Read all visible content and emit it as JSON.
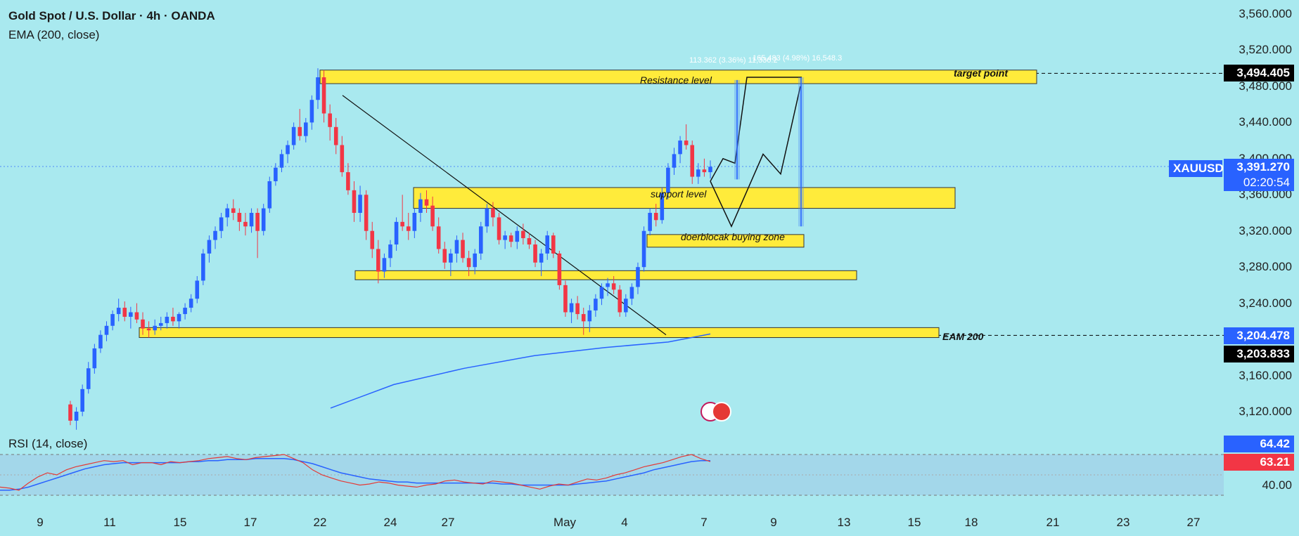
{
  "header": {
    "symbol_title": "Gold Spot / U.S. Dollar · 4h · OANDA",
    "indicator": "EMA (200, close)",
    "rsi_title": "RSI (14, close)"
  },
  "price_axis": [
    "3,560.000",
    "3,520.000",
    "3,480.000",
    "3,440.000",
    "3,400.000",
    "3,360.000",
    "3,320.000",
    "3,280.000",
    "3,240.000",
    "3,200.000",
    "3,160.000",
    "3,120.000"
  ],
  "rsi_axis": [
    "40.00"
  ],
  "tags": {
    "target": "3,494.405",
    "symbol": "XAUUSD",
    "current": "3,391.270",
    "countdown": "02:20:54",
    "ema_line": "3,204.478",
    "ema_value": "3,203.833",
    "rsi_ma": "64.42",
    "rsi": "63.21"
  },
  "annotations": {
    "resistance": "Resistance level",
    "support": "support level",
    "buying_zone": "doerblocak buying zone",
    "target_point": "target point",
    "eam": "EAM 200",
    "measure1": "113.362 (3.36%) 11,336.2",
    "measure2": "165.483 (4.98%) 16,548.3"
  },
  "time_axis": [
    "9",
    "11",
    "15",
    "17",
    "22",
    "24",
    "27",
    "May",
    "4",
    "7",
    "9",
    "13",
    "15",
    "18",
    "21",
    "23",
    "27"
  ],
  "colors": {
    "bg": "#a9e9ef",
    "up": "#2962ff",
    "down": "#f23645",
    "zone": "#ffeb3b",
    "ema": "#2962ff",
    "rsi": "#e53935"
  },
  "chart_data": {
    "type": "candlestick",
    "title": "Gold Spot / U.S. Dollar · 4h · OANDA",
    "y_range": [
      3100,
      3575
    ],
    "candles": [
      [
        3128,
        3132,
        3105,
        3110
      ],
      [
        3110,
        3125,
        3100,
        3120
      ],
      [
        3120,
        3150,
        3115,
        3145
      ],
      [
        3145,
        3175,
        3140,
        3168
      ],
      [
        3168,
        3195,
        3162,
        3190
      ],
      [
        3190,
        3210,
        3185,
        3205
      ],
      [
        3205,
        3220,
        3198,
        3215
      ],
      [
        3215,
        3232,
        3210,
        3228
      ],
      [
        3228,
        3245,
        3220,
        3235
      ],
      [
        3235,
        3242,
        3220,
        3225
      ],
      [
        3225,
        3236,
        3212,
        3230
      ],
      [
        3230,
        3240,
        3218,
        3222
      ],
      [
        3222,
        3230,
        3205,
        3212
      ],
      [
        3212,
        3220,
        3202,
        3210
      ],
      [
        3210,
        3222,
        3205,
        3215
      ],
      [
        3215,
        3225,
        3210,
        3218
      ],
      [
        3218,
        3230,
        3212,
        3225
      ],
      [
        3225,
        3235,
        3215,
        3220
      ],
      [
        3220,
        3230,
        3212,
        3228
      ],
      [
        3228,
        3240,
        3222,
        3235
      ],
      [
        3235,
        3250,
        3230,
        3245
      ],
      [
        3245,
        3270,
        3240,
        3265
      ],
      [
        3265,
        3300,
        3260,
        3295
      ],
      [
        3295,
        3315,
        3285,
        3310
      ],
      [
        3310,
        3325,
        3300,
        3320
      ],
      [
        3320,
        3340,
        3312,
        3335
      ],
      [
        3335,
        3350,
        3325,
        3345
      ],
      [
        3345,
        3355,
        3332,
        3340
      ],
      [
        3340,
        3345,
        3320,
        3330
      ],
      [
        3330,
        3340,
        3315,
        3325
      ],
      [
        3325,
        3345,
        3318,
        3340
      ],
      [
        3340,
        3345,
        3290,
        3320
      ],
      [
        3320,
        3350,
        3315,
        3345
      ],
      [
        3345,
        3380,
        3340,
        3375
      ],
      [
        3375,
        3395,
        3370,
        3390
      ],
      [
        3390,
        3410,
        3385,
        3405
      ],
      [
        3405,
        3420,
        3395,
        3415
      ],
      [
        3415,
        3440,
        3410,
        3435
      ],
      [
        3435,
        3455,
        3420,
        3425
      ],
      [
        3425,
        3445,
        3418,
        3440
      ],
      [
        3440,
        3470,
        3432,
        3465
      ],
      [
        3465,
        3500,
        3455,
        3490
      ],
      [
        3490,
        3498,
        3440,
        3450
      ],
      [
        3450,
        3460,
        3420,
        3435
      ],
      [
        3435,
        3445,
        3405,
        3415
      ],
      [
        3415,
        3425,
        3380,
        3385
      ],
      [
        3385,
        3395,
        3360,
        3365
      ],
      [
        3365,
        3375,
        3330,
        3340
      ],
      [
        3340,
        3370,
        3330,
        3360
      ],
      [
        3360,
        3365,
        3310,
        3320
      ],
      [
        3320,
        3330,
        3290,
        3300
      ],
      [
        3300,
        3310,
        3262,
        3275
      ],
      [
        3275,
        3295,
        3268,
        3290
      ],
      [
        3290,
        3310,
        3280,
        3305
      ],
      [
        3305,
        3335,
        3298,
        3330
      ],
      [
        3330,
        3360,
        3320,
        3325
      ],
      [
        3325,
        3340,
        3310,
        3320
      ],
      [
        3320,
        3345,
        3312,
        3340
      ],
      [
        3340,
        3362,
        3330,
        3355
      ],
      [
        3355,
        3365,
        3340,
        3348
      ],
      [
        3348,
        3358,
        3320,
        3325
      ],
      [
        3325,
        3335,
        3295,
        3300
      ],
      [
        3300,
        3308,
        3278,
        3285
      ],
      [
        3285,
        3300,
        3270,
        3295
      ],
      [
        3295,
        3315,
        3285,
        3310
      ],
      [
        3310,
        3318,
        3285,
        3290
      ],
      [
        3290,
        3298,
        3270,
        3280
      ],
      [
        3280,
        3300,
        3272,
        3295
      ],
      [
        3295,
        3330,
        3288,
        3325
      ],
      [
        3325,
        3350,
        3318,
        3345
      ],
      [
        3345,
        3352,
        3325,
        3335
      ],
      [
        3335,
        3340,
        3305,
        3310
      ],
      [
        3310,
        3320,
        3300,
        3315
      ],
      [
        3315,
        3318,
        3302,
        3308
      ],
      [
        3308,
        3325,
        3300,
        3320
      ],
      [
        3320,
        3328,
        3305,
        3312
      ],
      [
        3312,
        3318,
        3300,
        3305
      ],
      [
        3305,
        3310,
        3280,
        3285
      ],
      [
        3285,
        3300,
        3270,
        3295
      ],
      [
        3295,
        3320,
        3288,
        3315
      ],
      [
        3315,
        3318,
        3290,
        3295
      ],
      [
        3295,
        3298,
        3255,
        3260
      ],
      [
        3260,
        3265,
        3225,
        3230
      ],
      [
        3230,
        3245,
        3218,
        3240
      ],
      [
        3240,
        3248,
        3222,
        3228
      ],
      [
        3228,
        3235,
        3205,
        3220
      ],
      [
        3220,
        3238,
        3208,
        3232
      ],
      [
        3232,
        3250,
        3225,
        3245
      ],
      [
        3245,
        3262,
        3238,
        3258
      ],
      [
        3258,
        3268,
        3248,
        3262
      ],
      [
        3262,
        3270,
        3250,
        3255
      ],
      [
        3255,
        3260,
        3225,
        3230
      ],
      [
        3230,
        3250,
        3225,
        3245
      ],
      [
        3245,
        3262,
        3238,
        3258
      ],
      [
        3258,
        3285,
        3250,
        3280
      ],
      [
        3280,
        3325,
        3275,
        3320
      ],
      [
        3320,
        3345,
        3315,
        3340
      ],
      [
        3340,
        3350,
        3325,
        3332
      ],
      [
        3332,
        3368,
        3328,
        3362
      ],
      [
        3362,
        3395,
        3355,
        3390
      ],
      [
        3390,
        3412,
        3382,
        3405
      ],
      [
        3405,
        3425,
        3395,
        3420
      ],
      [
        3420,
        3438,
        3410,
        3415
      ],
      [
        3415,
        3420,
        3372,
        3380
      ],
      [
        3380,
        3395,
        3372,
        3388
      ],
      [
        3388,
        3400,
        3380,
        3385
      ],
      [
        3385,
        3398,
        3378,
        3391
      ]
    ],
    "ema200": [
      [
        3100,
        3080
      ],
      [
        3200,
        3150
      ],
      [
        3300,
        3180
      ],
      [
        3400,
        3192
      ],
      [
        3500,
        3202
      ]
    ],
    "current_price": 3391.27,
    "target": 3494.405,
    "ema_value": 3204.478,
    "rsi": {
      "value": 63.21,
      "ma": 64.42
    }
  }
}
